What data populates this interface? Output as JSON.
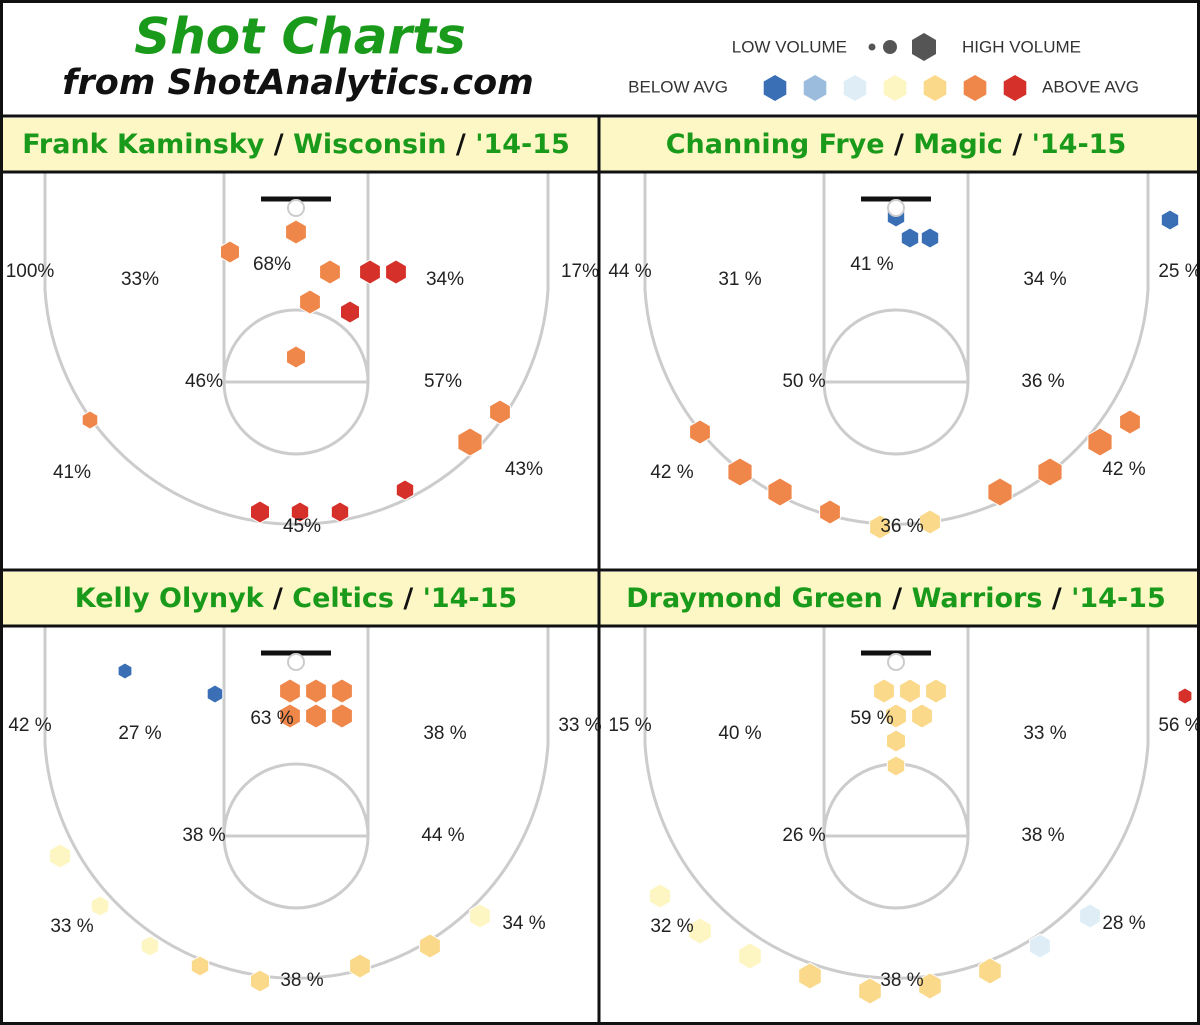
{
  "header": {
    "title": "Shot Charts",
    "subtitle": "from ShotAnalytics.com"
  },
  "legend": {
    "low_volume": "LOW VOLUME",
    "high_volume": "HIGH VOLUME",
    "below_avg": "BELOW AVG",
    "above_avg": "ABOVE AVG"
  },
  "panels": [
    {
      "player": "Frank Kaminsky",
      "team": "Wisconsin",
      "season": "'14-15",
      "zones": [
        "100%",
        "33%",
        "68%",
        "34%",
        "17%",
        "46%",
        "57%",
        "41%",
        "43%",
        "45%"
      ]
    },
    {
      "player": "Channing Frye",
      "team": "Magic",
      "season": "'14-15",
      "zones": [
        "44 %",
        "31 %",
        "41 %",
        "34 %",
        "25 %",
        "50 %",
        "36 %",
        "42 %",
        "42 %",
        "36 %"
      ]
    },
    {
      "player": "Kelly Olynyk",
      "team": "Celtics",
      "season": "'14-15",
      "zones": [
        "42 %",
        "27 %",
        "63 %",
        "38 %",
        "33 %",
        "38 %",
        "44 %",
        "33 %",
        "34 %",
        "38 %"
      ]
    },
    {
      "player": "Draymond Green",
      "team": "Warriors",
      "season": "'14-15",
      "zones": [
        "15 %",
        "40 %",
        "59 %",
        "33 %",
        "56 %",
        "26 %",
        "38 %",
        "32 %",
        "28 %",
        "38 %"
      ]
    }
  ]
}
